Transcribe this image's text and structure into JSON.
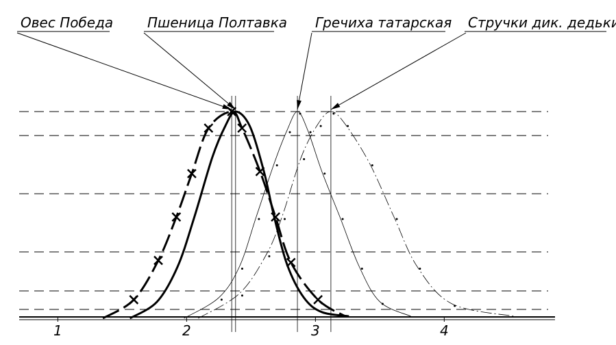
{
  "chart_data": {
    "type": "line",
    "xlim": [
      0.7,
      4.86
    ],
    "ylim": [
      0,
      1
    ],
    "xticks": [
      1,
      2,
      3,
      4
    ],
    "series": [
      {
        "name": "Овес Победа",
        "color": "#000000",
        "line_style": "dashed",
        "line_width": 3,
        "marker": "x",
        "x": [
          1.35,
          1.59,
          1.78,
          1.92,
          2.04,
          2.17,
          2.35,
          2.43,
          2.57,
          2.69,
          2.81,
          3.02,
          3.23
        ],
        "values": [
          0,
          0.09,
          0.28,
          0.49,
          0.7,
          0.92,
          1,
          0.92,
          0.71,
          0.49,
          0.27,
          0.09,
          0.01
        ]
      },
      {
        "name": "Пшеница Полтавка",
        "color": "#000000",
        "line_style": "solid",
        "line_width": 3,
        "marker": "none",
        "x": [
          1.56,
          1.77,
          1.93,
          2.06,
          2.2,
          2.3,
          2.38,
          2.49,
          2.6,
          2.68,
          2.78,
          2.91,
          3.05,
          3.26
        ],
        "values": [
          0,
          0.08,
          0.25,
          0.49,
          0.78,
          0.93,
          1,
          0.93,
          0.71,
          0.49,
          0.26,
          0.1,
          0.03,
          0.01
        ]
      },
      {
        "name": "Гречиха татарская",
        "color": "#000000",
        "line_style": "solid",
        "line_width": 0.8,
        "marker": "dot",
        "x": [
          1.98,
          2.25,
          2.41,
          2.54,
          2.68,
          2.78,
          2.86,
          2.94,
          3.05,
          3.19,
          3.34,
          3.5,
          3.74
        ],
        "values": [
          0,
          0.1,
          0.25,
          0.49,
          0.75,
          0.91,
          1,
          0.91,
          0.71,
          0.49,
          0.25,
          0.08,
          0.01
        ]
      },
      {
        "name": "Стручки дик. дедьки",
        "color": "#000000",
        "line_style": "dash-dot",
        "line_width": 0.8,
        "marker": "dot",
        "x": [
          2.09,
          2.41,
          2.62,
          2.74,
          2.89,
          3.02,
          3.12,
          3.23,
          3.42,
          3.61,
          3.79,
          4.06,
          4.54
        ],
        "values": [
          0,
          0.12,
          0.31,
          0.49,
          0.78,
          0.94,
          1,
          0.94,
          0.75,
          0.49,
          0.25,
          0.07,
          0.01
        ]
      }
    ]
  }
}
